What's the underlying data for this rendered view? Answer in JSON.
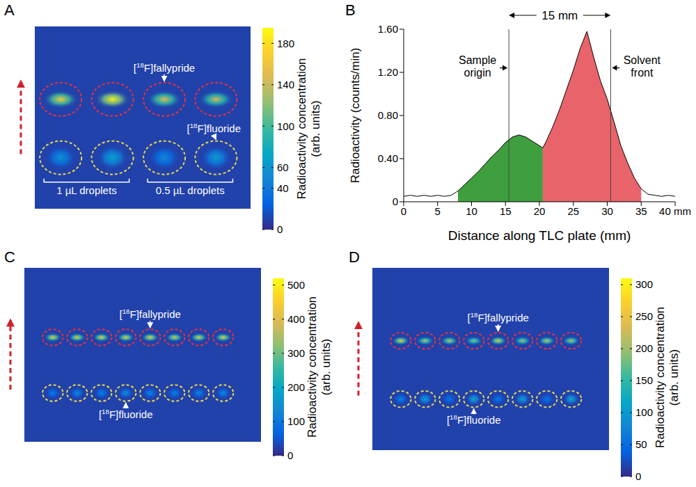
{
  "chart_data": [
    {
      "panel": "A",
      "type": "heatmap",
      "categories": [
        "1 µL droplets",
        "1 µL droplets",
        "0.5 µL droplets",
        "0.5 µL droplets"
      ],
      "series": [
        {
          "name": "[18F]fallypride",
          "color": "#e8333a",
          "values": [
            165,
            190,
            150,
            145
          ]
        },
        {
          "name": "[18F]fluoride",
          "color": "#e6d84a",
          "values": [
            55,
            70,
            50,
            65
          ]
        }
      ],
      "colorbar": {
        "label": "Radioactivity concentration (arb. units)",
        "range": [
          0,
          195
        ],
        "ticks": [
          0,
          40,
          60,
          100,
          140,
          180
        ]
      }
    },
    {
      "panel": "B",
      "type": "area",
      "x": [
        0,
        1,
        2,
        3,
        4,
        5,
        6,
        7,
        8,
        9,
        10,
        11,
        12,
        13,
        14,
        15,
        16,
        17,
        18,
        19,
        20,
        20.5,
        21,
        22,
        23,
        24,
        25,
        26,
        27,
        28,
        29,
        30,
        31,
        32,
        33,
        34,
        35,
        36,
        37,
        38,
        39,
        40
      ],
      "values": [
        0.05,
        0.06,
        0.05,
        0.06,
        0.05,
        0.06,
        0.05,
        0.06,
        0.1,
        0.16,
        0.22,
        0.28,
        0.35,
        0.42,
        0.48,
        0.55,
        0.6,
        0.62,
        0.6,
        0.56,
        0.52,
        0.5,
        0.56,
        0.7,
        0.86,
        1.04,
        1.22,
        1.42,
        1.58,
        1.34,
        1.12,
        0.95,
        0.74,
        0.52,
        0.36,
        0.22,
        0.12,
        0.07,
        0.06,
        0.05,
        0.06,
        0.05
      ],
      "color": "#000000",
      "regions": [
        {
          "from": 8,
          "to": 20.5,
          "color": "#3f9f3f"
        },
        {
          "from": 20.5,
          "to": 35,
          "color": "#e8646a"
        }
      ],
      "xlabel": "Distance along TLC plate (mm)",
      "ylabel": "Radioactivity (counts/min)",
      "xlim": [
        0,
        40
      ],
      "xticks": [
        0,
        5,
        10,
        15,
        20,
        25,
        30,
        35,
        {
          "value": 40,
          "label": "40 mm"
        }
      ],
      "ylim": [
        0,
        1.6
      ],
      "yticks": [
        0,
        {
          "value": 0.4,
          "label": "0.40"
        },
        {
          "value": 0.8,
          "label": "0.80"
        },
        {
          "value": 1.2,
          "label": "1.20"
        },
        {
          "value": 1.6,
          "label": "1.60"
        }
      ],
      "annotations": [
        {
          "text": "Sample origin",
          "x": 15.5
        },
        {
          "text": "Solvent front",
          "x": 30.5
        }
      ],
      "span": {
        "text": "15 mm",
        "from": 15.5,
        "to": 30.5
      }
    },
    {
      "panel": "C",
      "type": "heatmap",
      "categories": [
        null,
        null,
        null,
        null,
        null,
        null,
        null,
        null
      ],
      "series": [
        {
          "name": "[18F]fallypride",
          "color": "#e8333a",
          "values": [
            430,
            420,
            430,
            420,
            440,
            410,
            420,
            430
          ]
        },
        {
          "name": "[18F]fluoride",
          "color": "#e6d84a",
          "values": [
            110,
            130,
            115,
            140,
            120,
            115,
            125,
            130
          ]
        }
      ],
      "colorbar": {
        "label": "Radioactivity concentration (arb. units)",
        "range": [
          0,
          520
        ],
        "ticks": [
          0,
          100,
          200,
          300,
          400,
          500
        ]
      }
    },
    {
      "panel": "D",
      "type": "heatmap",
      "categories": [
        null,
        null,
        null,
        null,
        null,
        null,
        null,
        null
      ],
      "series": [
        {
          "name": "[18F]fallypride",
          "color": "#e8333a",
          "values": [
            260,
            220,
            230,
            200,
            250,
            210,
            230,
            220
          ]
        },
        {
          "name": "[18F]fluoride",
          "color": "#e6d84a",
          "values": [
            70,
            110,
            60,
            120,
            60,
            110,
            60,
            120
          ]
        }
      ],
      "colorbar": {
        "label": "Radioactivity concentration (arb. units)",
        "range": [
          0,
          310
        ],
        "ticks": [
          0,
          50,
          100,
          150,
          200,
          250,
          300
        ]
      }
    }
  ]
}
